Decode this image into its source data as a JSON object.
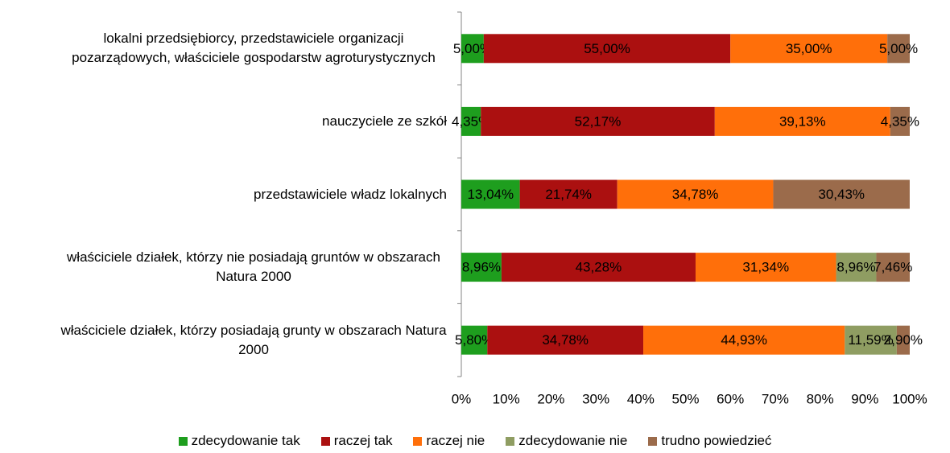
{
  "chart_data": {
    "type": "stacked-bar-horizontal",
    "categories": [
      "lokalni przedsiębiorcy, przedstawiciele organizacji pozarządowych, właściciele gospodarstw agroturystycznych",
      "nauczyciele ze szkół",
      "przedstawiciele władz lokalnych",
      "właściciele działek, którzy nie posiadają gruntów w obszarach Natura 2000",
      "właściciele działek, którzy posiadają grunty w obszarach Natura 2000"
    ],
    "series": [
      {
        "name": "zdecydowanie tak",
        "color": "#1e9e1e",
        "values": [
          5.0,
          4.35,
          13.04,
          8.96,
          5.8
        ],
        "value_labels": [
          "5,00%",
          "4,35%",
          "13,04%",
          "8,96%",
          "5,80%"
        ]
      },
      {
        "name": "raczej tak",
        "color": "#ab1010",
        "values": [
          55.0,
          52.17,
          21.74,
          43.28,
          34.78
        ],
        "value_labels": [
          "55,00%",
          "52,17%",
          "21,74%",
          "43,28%",
          "34,78%"
        ]
      },
      {
        "name": "raczej nie",
        "color": "#ff6f0a",
        "values": [
          35.0,
          39.13,
          34.78,
          31.34,
          44.93
        ],
        "value_labels": [
          "35,00%",
          "39,13%",
          "34,78%",
          "31,34%",
          "44,93%"
        ]
      },
      {
        "name": "zdecydowanie nie",
        "color": "#8f9d62",
        "values": [
          null,
          null,
          null,
          8.96,
          11.59
        ],
        "value_labels": [
          null,
          null,
          null,
          "8,96%",
          "11,59%"
        ]
      },
      {
        "name": "trudno powiedzieć",
        "color": "#9b6b4b",
        "values": [
          5.0,
          4.35,
          30.43,
          7.46,
          2.9
        ],
        "value_labels": [
          "5,00%",
          "4,35%",
          "30,43%",
          "7,46%",
          "2,90%"
        ]
      }
    ],
    "xlim": [
      0,
      100
    ],
    "xticks": [
      {
        "value": 0,
        "label": "0%"
      },
      {
        "value": 10,
        "label": "10%"
      },
      {
        "value": 20,
        "label": "20%"
      },
      {
        "value": 30,
        "label": "30%"
      },
      {
        "value": 40,
        "label": "40%"
      },
      {
        "value": 50,
        "label": "50%"
      },
      {
        "value": 60,
        "label": "60%"
      },
      {
        "value": 70,
        "label": "70%"
      },
      {
        "value": 80,
        "label": "80%"
      },
      {
        "value": 90,
        "label": "90%"
      },
      {
        "value": 100,
        "label": "100%"
      }
    ],
    "legend": "bottom"
  }
}
